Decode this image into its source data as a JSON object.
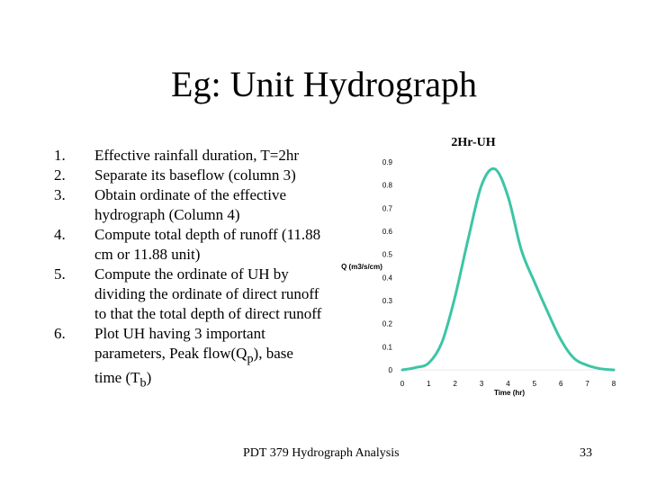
{
  "title": "Eg: Unit Hydrograph",
  "steps": [
    {
      "num": "1.",
      "text": "Effective rainfall duration, T=2hr"
    },
    {
      "num": "2.",
      "text": "Separate its baseflow (column 3)"
    },
    {
      "num": "3.",
      "text": "Obtain ordinate of the effective hydrograph (Column 4)"
    },
    {
      "num": "4.",
      "text": "Compute total depth of runoff (11.88 cm or 11.88 unit)"
    },
    {
      "num": "5.",
      "text": "Compute the ordinate of UH by dividing the ordinate of direct runoff to that the total depth of direct runoff"
    },
    {
      "num": "6.",
      "text_before_p": "Plot UH having 3 important parameters, Peak flow(Q",
      "sub_p": "p",
      "text_mid": "), base time (T",
      "sub_b": "b",
      "text_after": ")"
    }
  ],
  "chart_data": {
    "type": "line",
    "title": "2Hr-UH",
    "xlabel": "Time (hr)",
    "ylabel": "Q (m3/s/cm)",
    "xlim": [
      0,
      8
    ],
    "ylim": [
      0,
      0.9
    ],
    "x_ticks": [
      "0",
      "1",
      "2",
      "3",
      "4",
      "5",
      "6",
      "7",
      "8"
    ],
    "y_ticks": [
      "0",
      "0.1",
      "0.2",
      "0.3",
      "0.4",
      "0.5",
      "0.6",
      "0.7",
      "0.8",
      "0.9"
    ],
    "series": [
      {
        "color": "#3cc5a5",
        "x": [
          0,
          0.5,
          1,
          1.5,
          2,
          2.5,
          3,
          3.5,
          4,
          4.5,
          5,
          5.5,
          6,
          6.5,
          7,
          7.5,
          8
        ],
        "y": [
          0,
          0.01,
          0.03,
          0.12,
          0.32,
          0.57,
          0.8,
          0.87,
          0.75,
          0.52,
          0.38,
          0.25,
          0.13,
          0.05,
          0.02,
          0.005,
          0
        ]
      }
    ]
  },
  "footer": "PDT 379 Hydrograph Analysis",
  "page_number": "33"
}
